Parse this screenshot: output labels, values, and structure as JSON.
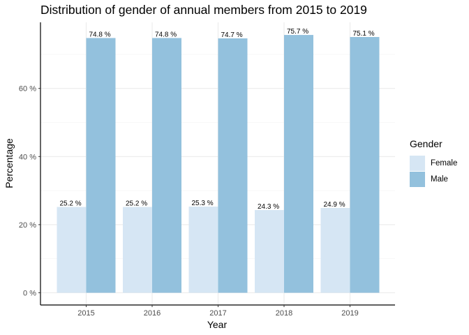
{
  "chart_data": {
    "type": "bar",
    "title": "Distribution of gender of annual members from 2015 to 2019",
    "xlabel": "Year",
    "ylabel": "Percentage",
    "categories": [
      "2015",
      "2016",
      "2017",
      "2018",
      "2019"
    ],
    "series": [
      {
        "name": "Female",
        "color": "#d6e6f4",
        "values": [
          25.2,
          25.2,
          25.3,
          24.3,
          24.9
        ],
        "labels": [
          "25.2 %",
          "25.2 %",
          "25.3 %",
          "24.3 %",
          "24.9 %"
        ]
      },
      {
        "name": "Male",
        "color": "#93c1dd",
        "values": [
          74.8,
          74.8,
          74.7,
          75.7,
          75.1
        ],
        "labels": [
          "74.8 %",
          "74.8 %",
          "74.7 %",
          "75.7 %",
          "75.1 %"
        ]
      }
    ],
    "ylim": [
      0,
      80
    ],
    "yticks": [
      0,
      20,
      40,
      60
    ],
    "ytick_labels": [
      "0 %",
      "20 %",
      "40 %",
      "60 %"
    ],
    "grid": true,
    "legend": {
      "title": "Gender",
      "position": "right"
    }
  }
}
